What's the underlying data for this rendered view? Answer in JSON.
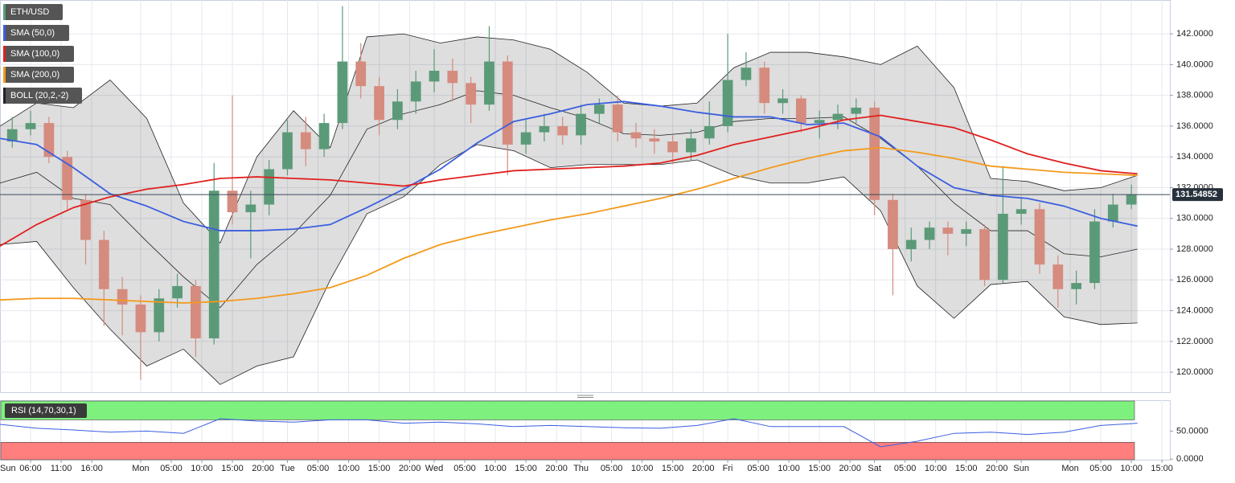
{
  "chart_data": {
    "type": "candlestick",
    "symbol": "ETH/USD",
    "symbol_color": "#5b9a78",
    "up_color": "#5b9a78",
    "down_color": "#d58b7e",
    "grid": true,
    "xlim": [
      1,
      192.3
    ],
    "xticks": [
      {
        "value": 0,
        "label": "Sun"
      },
      {
        "value": 6,
        "label": "06:00"
      },
      {
        "value": 11,
        "label": "11:00"
      },
      {
        "value": 16,
        "label": "16:00"
      },
      {
        "value": 24,
        "label": "Mon"
      },
      {
        "value": 29,
        "label": "05:00"
      },
      {
        "value": 34,
        "label": "10:00"
      },
      {
        "value": 39,
        "label": "15:00"
      },
      {
        "value": 44,
        "label": "20:00"
      },
      {
        "value": 48,
        "label": "Tue"
      },
      {
        "value": 53,
        "label": "05:00"
      },
      {
        "value": 58,
        "label": "10:00"
      },
      {
        "value": 63,
        "label": "15:00"
      },
      {
        "value": 68,
        "label": "20:00"
      },
      {
        "value": 72,
        "label": "Wed"
      },
      {
        "value": 77,
        "label": "05:00"
      },
      {
        "value": 82,
        "label": "10:00"
      },
      {
        "value": 87,
        "label": "15:00"
      },
      {
        "value": 92,
        "label": "20:00"
      },
      {
        "value": 96,
        "label": "Thu"
      },
      {
        "value": 101,
        "label": "05:00"
      },
      {
        "value": 106,
        "label": "10:00"
      },
      {
        "value": 111,
        "label": "15:00"
      },
      {
        "value": 116,
        "label": "20:00"
      },
      {
        "value": 120,
        "label": "Fri"
      },
      {
        "value": 125,
        "label": "05:00"
      },
      {
        "value": 130,
        "label": "10:00"
      },
      {
        "value": 135,
        "label": "15:00"
      },
      {
        "value": 140,
        "label": "20:00"
      },
      {
        "value": 144,
        "label": "Sat"
      },
      {
        "value": 149,
        "label": "05:00"
      },
      {
        "value": 154,
        "label": "10:00"
      },
      {
        "value": 159,
        "label": "15:00"
      },
      {
        "value": 164,
        "label": "20:00"
      },
      {
        "value": 168,
        "label": "Sun"
      },
      {
        "value": 176,
        "label": "Mon"
      },
      {
        "value": 181,
        "label": "05:00"
      },
      {
        "value": 186,
        "label": "10:00"
      },
      {
        "value": 191,
        "label": "15:00"
      }
    ],
    "ylim": [
      118.7,
      144.2
    ],
    "yticks": [
      {
        "value": 120,
        "label": "120.0000"
      },
      {
        "value": 122,
        "label": "122.0000"
      },
      {
        "value": 124,
        "label": "124.0000"
      },
      {
        "value": 126,
        "label": "126.0000"
      },
      {
        "value": 128,
        "label": "128.0000"
      },
      {
        "value": 130,
        "label": "130.0000"
      },
      {
        "value": 132,
        "label": "132.0000"
      },
      {
        "value": 134,
        "label": "134.0000"
      },
      {
        "value": 136,
        "label": "136.0000"
      },
      {
        "value": 138,
        "label": "138.0000"
      },
      {
        "value": 140,
        "label": "140.0000"
      },
      {
        "value": 142,
        "label": "142.0000"
      }
    ],
    "candles": {
      "x": [
        3,
        6,
        9,
        12,
        15,
        18,
        21,
        24,
        27,
        30,
        33,
        36,
        39,
        42,
        45,
        48,
        51,
        54,
        57,
        60,
        63,
        66,
        69,
        72,
        75,
        78,
        81,
        84,
        87,
        90,
        93,
        96,
        99,
        102,
        105,
        108,
        111,
        114,
        117,
        120,
        123,
        126,
        129,
        132,
        135,
        138,
        141,
        144,
        147,
        150,
        153,
        156,
        159,
        162,
        165,
        168,
        171,
        174,
        177,
        180,
        183,
        186
      ],
      "open": [
        135.0,
        135.8,
        136.2,
        134.0,
        131.2,
        128.6,
        125.4,
        124.4,
        122.6,
        124.8,
        125.6,
        122.2,
        131.8,
        130.4,
        130.9,
        133.2,
        135.6,
        134.5,
        136.2,
        140.2,
        138.6,
        136.4,
        137.6,
        138.9,
        139.6,
        138.8,
        137.4,
        140.2,
        134.8,
        135.6,
        136.0,
        135.4,
        136.8,
        137.4,
        135.6,
        135.2,
        135.0,
        134.3,
        135.2,
        136.0,
        139.0,
        139.8,
        137.5,
        137.8,
        136.2,
        136.4,
        136.8,
        137.2,
        131.2,
        128.0,
        128.6,
        129.4,
        129.0,
        129.3,
        126.0,
        130.3,
        130.6,
        127.0,
        125.4,
        125.8,
        129.8,
        130.9
      ],
      "high": [
        136.6,
        137.0,
        136.6,
        134.4,
        131.6,
        129.2,
        126.2,
        125.0,
        125.4,
        126.4,
        126.0,
        133.6,
        138.0,
        131.8,
        133.8,
        136.4,
        136.6,
        136.8,
        143.8,
        141.4,
        139.2,
        138.4,
        139.6,
        141.0,
        140.4,
        139.2,
        142.5,
        140.6,
        136.4,
        136.8,
        136.6,
        137.4,
        137.8,
        138.0,
        136.2,
        135.8,
        135.4,
        135.8,
        137.6,
        142.0,
        140.8,
        140.2,
        138.4,
        138.0,
        137.0,
        137.4,
        137.8,
        137.6,
        131.6,
        129.4,
        129.8,
        129.8,
        129.8,
        129.6,
        133.4,
        131.4,
        131.0,
        127.6,
        126.6,
        130.6,
        131.6,
        132.2
      ],
      "low": [
        134.6,
        135.4,
        133.6,
        130.6,
        127.0,
        123.0,
        122.4,
        119.5,
        122.0,
        124.2,
        121.0,
        121.8,
        129.6,
        127.4,
        130.2,
        132.8,
        133.4,
        134.0,
        135.8,
        137.8,
        135.4,
        135.8,
        136.8,
        138.2,
        137.6,
        136.2,
        137.0,
        132.8,
        134.2,
        135.0,
        134.8,
        134.8,
        136.2,
        135.0,
        134.6,
        134.2,
        133.5,
        133.8,
        134.8,
        135.6,
        138.6,
        136.8,
        136.8,
        135.6,
        135.2,
        135.8,
        136.2,
        130.2,
        125.0,
        127.2,
        128.0,
        127.6,
        128.2,
        125.6,
        125.8,
        129.6,
        126.4,
        124.2,
        124.4,
        125.4,
        129.4,
        130.6
      ],
      "close": [
        135.8,
        136.2,
        134.0,
        131.2,
        128.6,
        125.4,
        124.4,
        122.6,
        124.8,
        125.6,
        122.2,
        131.8,
        130.4,
        130.9,
        133.2,
        135.6,
        134.5,
        136.2,
        140.2,
        138.6,
        136.4,
        137.6,
        138.9,
        139.6,
        138.8,
        137.4,
        140.2,
        134.8,
        135.6,
        136.0,
        135.4,
        136.8,
        137.4,
        135.6,
        135.2,
        135.0,
        134.3,
        135.2,
        136.0,
        139.0,
        139.8,
        137.5,
        137.8,
        136.2,
        136.4,
        136.8,
        137.2,
        131.2,
        128.0,
        128.6,
        129.4,
        129.0,
        129.3,
        126.0,
        130.3,
        130.6,
        127.0,
        125.4,
        125.8,
        129.8,
        130.9,
        131.54852
      ]
    },
    "indicator_x": [
      1,
      7,
      13,
      19,
      25,
      31,
      37,
      43,
      49,
      55,
      61,
      67,
      73,
      79,
      85,
      91,
      97,
      103,
      109,
      115,
      121,
      127,
      133,
      139,
      145,
      151,
      157,
      163,
      169,
      175,
      181,
      187
    ],
    "series": [
      {
        "name": "SMA (50,0)",
        "color": "#3b5ee0",
        "values": [
          135.2,
          134.8,
          133.3,
          131.6,
          130.8,
          129.8,
          129.2,
          129.2,
          129.3,
          129.6,
          130.7,
          131.9,
          133.2,
          134.9,
          136.3,
          136.8,
          137.4,
          137.6,
          137.3,
          136.9,
          136.6,
          136.6,
          136.1,
          136.2,
          135.3,
          133.4,
          132.0,
          131.5,
          131.3,
          130.8,
          130.0,
          129.5
        ]
      },
      {
        "name": "SMA (100,0)",
        "color": "#e0201e",
        "values": [
          128.2,
          129.6,
          130.7,
          131.4,
          131.9,
          132.2,
          132.6,
          132.7,
          132.6,
          132.5,
          132.3,
          132.1,
          132.5,
          132.8,
          133.1,
          133.2,
          133.3,
          133.4,
          133.6,
          134.1,
          134.8,
          135.3,
          135.8,
          136.4,
          136.7,
          136.3,
          135.9,
          135.1,
          134.2,
          133.6,
          133.1,
          132.9
        ]
      },
      {
        "name": "SMA (200,0)",
        "color": "#f39a1c",
        "values": [
          124.7,
          124.8,
          124.8,
          124.7,
          124.6,
          124.5,
          124.6,
          124.8,
          125.1,
          125.5,
          126.3,
          127.4,
          128.3,
          128.9,
          129.4,
          129.9,
          130.3,
          130.8,
          131.3,
          131.9,
          132.6,
          133.3,
          133.9,
          134.4,
          134.6,
          134.3,
          133.9,
          133.4,
          133.2,
          133.0,
          132.9,
          132.8
        ]
      }
    ],
    "bollinger": {
      "name": "BOLL (20,2,-2)",
      "color": "#222222",
      "upper": [
        136.0,
        137.5,
        137.2,
        139.0,
        136.5,
        131.0,
        128.4,
        134.0,
        137.0,
        134.6,
        141.8,
        142.0,
        141.4,
        141.8,
        141.6,
        141.0,
        139.5,
        137.5,
        137.3,
        137.5,
        139.8,
        140.8,
        140.8,
        140.5,
        140.0,
        141.2,
        138.5,
        132.6,
        132.4,
        131.8,
        132.0,
        132.8
      ],
      "middle": [
        132.3,
        133.0,
        131.3,
        130.9,
        128.5,
        126.2,
        124.2,
        127.0,
        129.0,
        131.5,
        135.8,
        136.8,
        137.4,
        138.3,
        138.0,
        137.2,
        136.5,
        135.5,
        135.4,
        135.6,
        136.3,
        136.5,
        136.5,
        136.6,
        135.2,
        133.4,
        131.0,
        129.2,
        129.2,
        127.7,
        127.5,
        128.0
      ],
      "lower": [
        128.3,
        128.5,
        125.5,
        122.8,
        120.4,
        121.5,
        119.2,
        120.4,
        121.0,
        126.0,
        130.3,
        131.4,
        133.5,
        134.8,
        134.4,
        133.3,
        133.5,
        133.5,
        133.5,
        133.8,
        132.8,
        132.3,
        132.3,
        132.7,
        130.5,
        125.6,
        123.5,
        125.7,
        125.9,
        123.6,
        123.1,
        123.2
      ]
    },
    "rsi": {
      "name": "RSI (14,70,30,1)",
      "color": "#3b5ee0",
      "overbought": 70,
      "oversold": 30,
      "ylim": [
        -1,
        105
      ],
      "yticks": [
        {
          "value": 0,
          "label": "0.0000"
        },
        {
          "value": 50,
          "label": "50.0000"
        }
      ],
      "values": [
        62,
        55,
        52,
        48,
        50,
        46,
        72,
        68,
        66,
        70,
        70,
        64,
        66,
        63,
        58,
        60,
        58,
        56,
        55,
        60,
        72,
        58,
        58,
        58,
        22,
        32,
        46,
        48,
        44,
        48,
        60,
        64
      ]
    }
  }
}
